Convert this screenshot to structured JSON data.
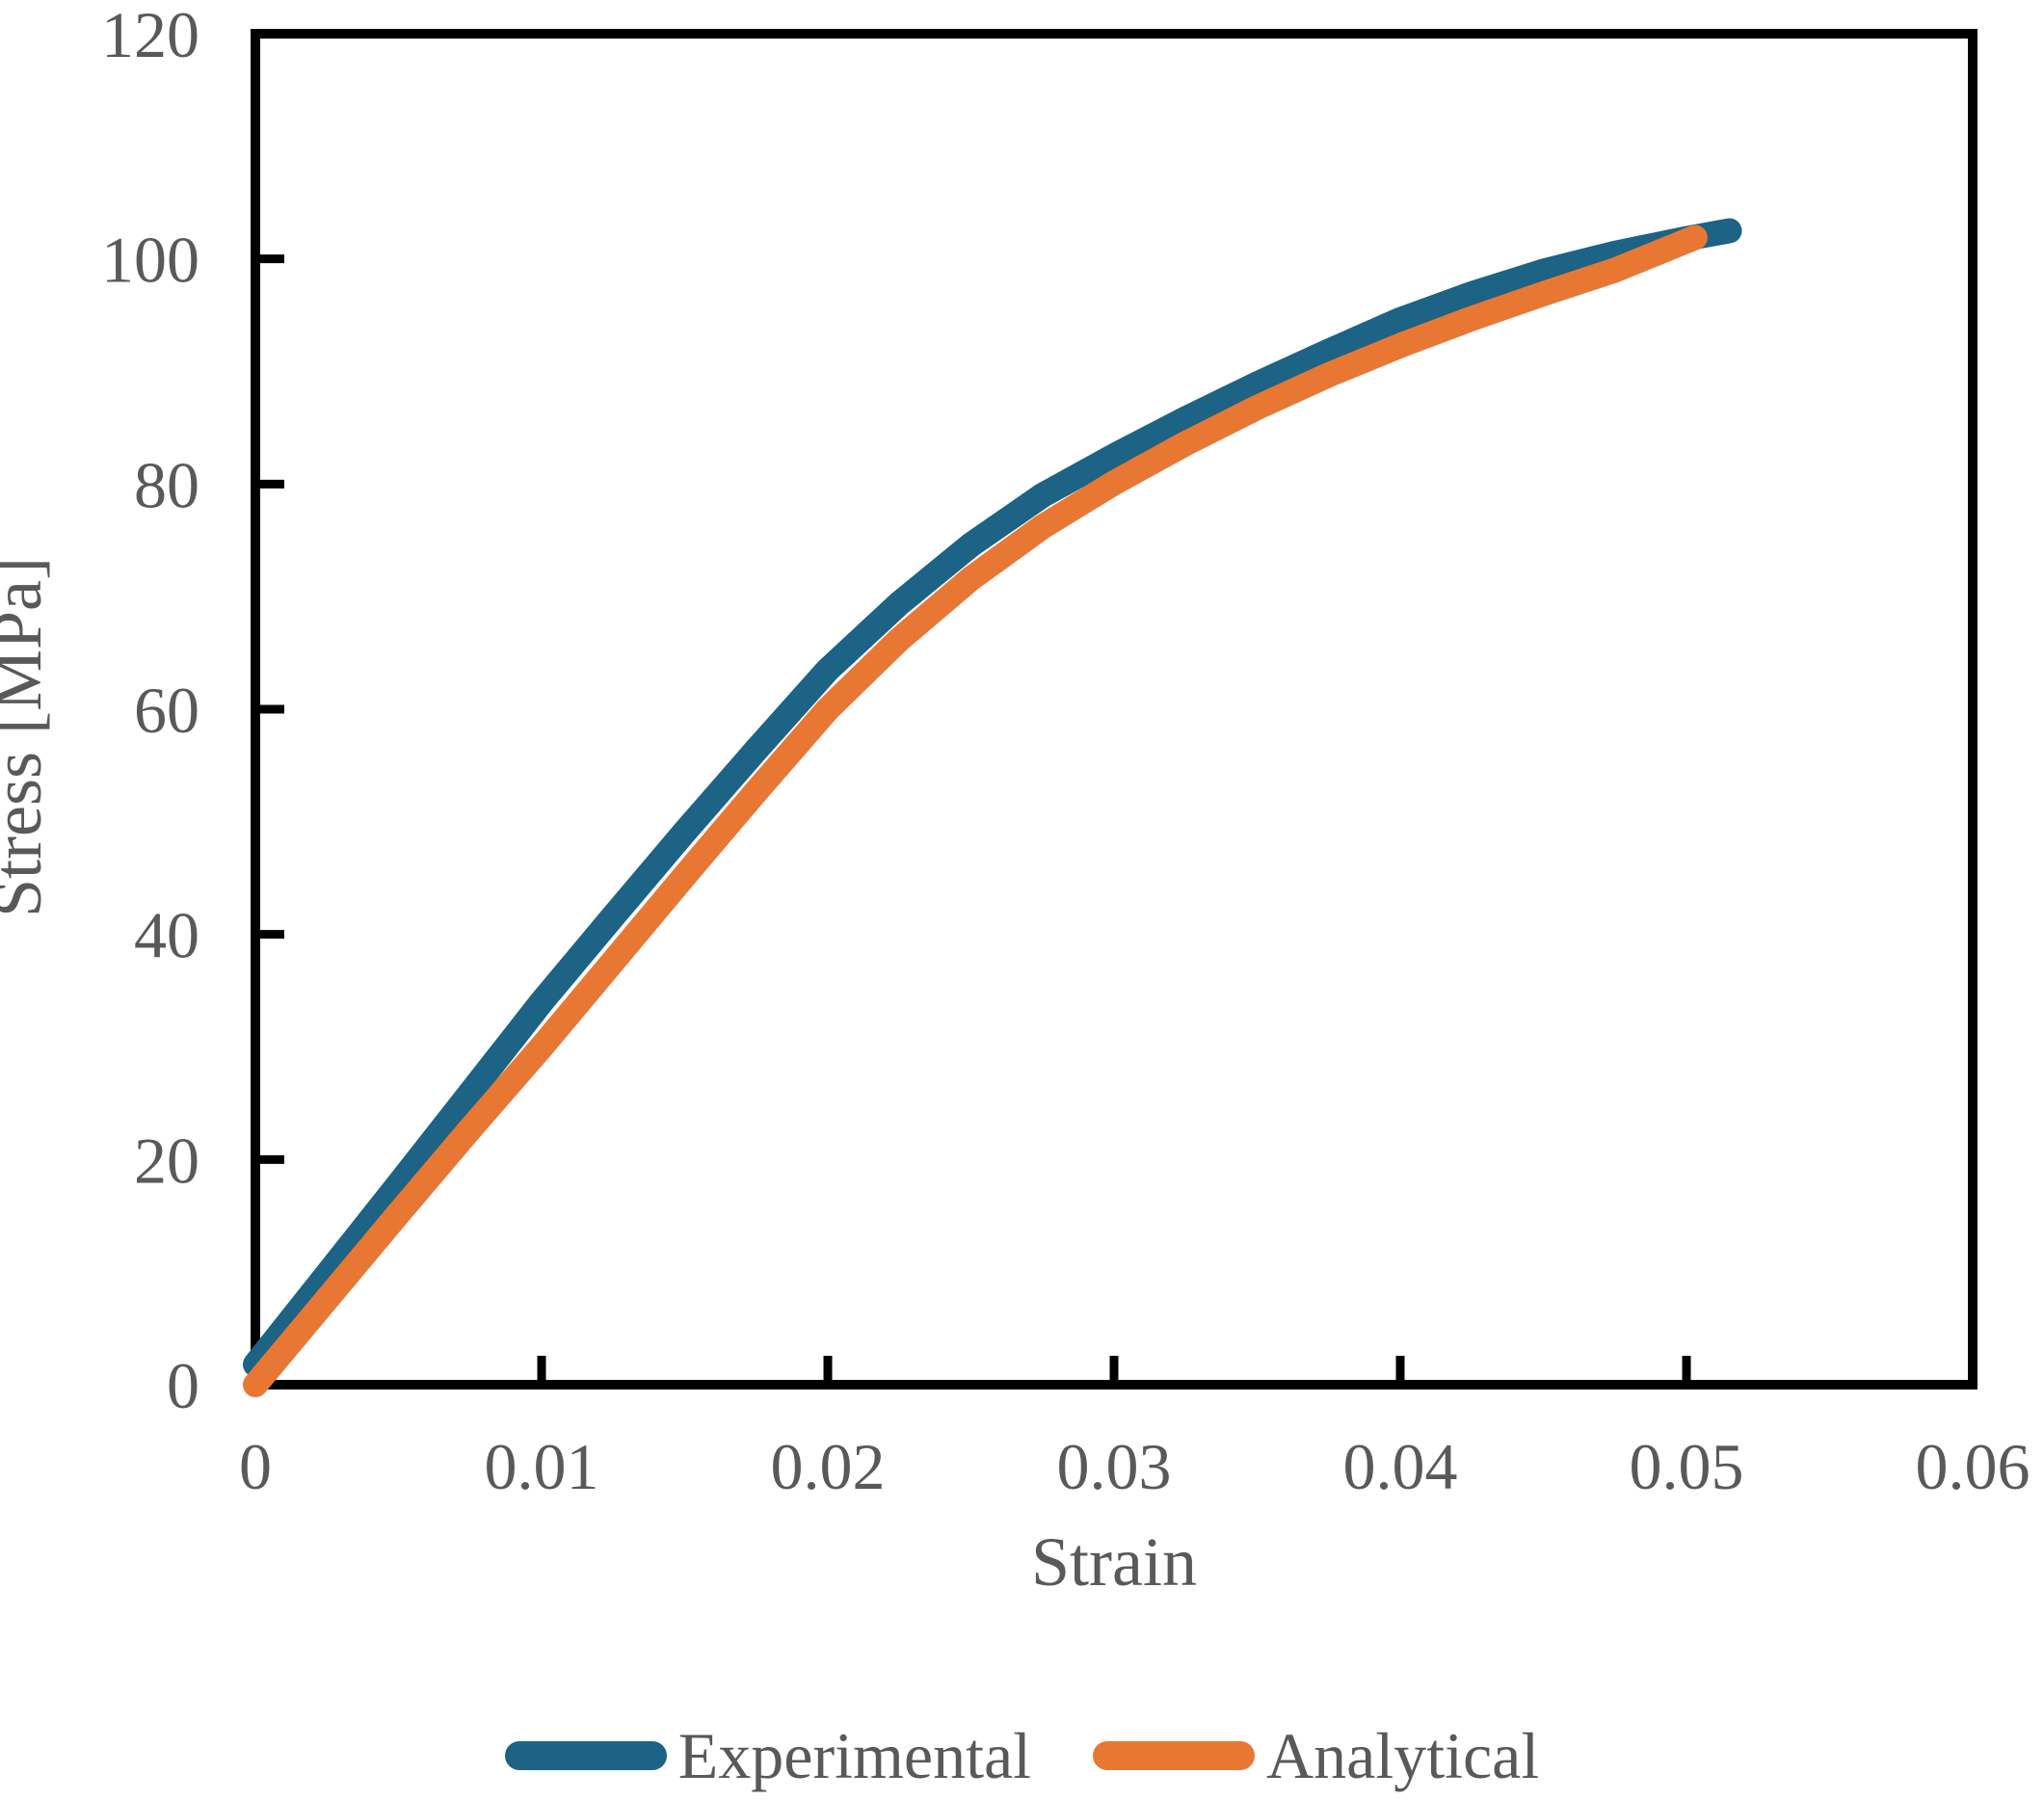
{
  "colors": {
    "experimental": "#1C6385",
    "analytical": "#E97734",
    "axis_frame": "#000000",
    "text": "#595959",
    "background": "#ffffff"
  },
  "axes": {
    "x_tick_labels": [
      "0",
      "0.01",
      "0.02",
      "0.03",
      "0.04",
      "0.05",
      "0.06"
    ],
    "x_tick_values": [
      0,
      0.01,
      0.02,
      0.03,
      0.04,
      0.05,
      0.06
    ],
    "y_tick_labels": [
      "0",
      "20",
      "40",
      "60",
      "80",
      "100",
      "120"
    ],
    "y_tick_values": [
      0,
      20,
      40,
      60,
      80,
      100,
      120
    ]
  },
  "chart_data": {
    "type": "line",
    "title": "",
    "xlabel": "Strain",
    "ylabel": "Stress [MPa]",
    "xlim": [
      0,
      0.06
    ],
    "ylim": [
      0,
      120
    ],
    "grid": false,
    "legend_position": "bottom",
    "series": [
      {
        "name": "Experimental",
        "color": "#1C6385",
        "x": [
          0,
          0.0025,
          0.005,
          0.0075,
          0.01,
          0.0125,
          0.015,
          0.0175,
          0.02,
          0.0225,
          0.025,
          0.0275,
          0.03,
          0.0325,
          0.035,
          0.0375,
          0.04,
          0.0425,
          0.045,
          0.0475,
          0.05,
          0.0515
        ],
        "y": [
          1.8,
          9.8,
          17.8,
          25.9,
          34.0,
          41.6,
          49.1,
          56.4,
          63.5,
          69.4,
          74.6,
          79.0,
          82.5,
          85.8,
          88.9,
          91.8,
          94.6,
          96.9,
          98.9,
          100.5,
          101.8,
          102.5
        ]
      },
      {
        "name": "Analytical",
        "color": "#E97734",
        "x": [
          0,
          0.0025,
          0.005,
          0.0075,
          0.01,
          0.0125,
          0.015,
          0.0175,
          0.02,
          0.0225,
          0.025,
          0.0275,
          0.03,
          0.0325,
          0.035,
          0.0375,
          0.04,
          0.0425,
          0.045,
          0.0475,
          0.0503
        ],
        "y": [
          0,
          7.6,
          15.2,
          22.7,
          30.0,
          37.6,
          45.2,
          52.7,
          60.0,
          66.2,
          71.6,
          76.2,
          80.1,
          83.6,
          86.8,
          89.7,
          92.3,
          94.7,
          96.9,
          99.0,
          101.9
        ]
      }
    ]
  },
  "legend": {
    "items": [
      {
        "label": "Experimental",
        "color": "#1C6385"
      },
      {
        "label": "Analytical",
        "color": "#E97734"
      }
    ]
  }
}
